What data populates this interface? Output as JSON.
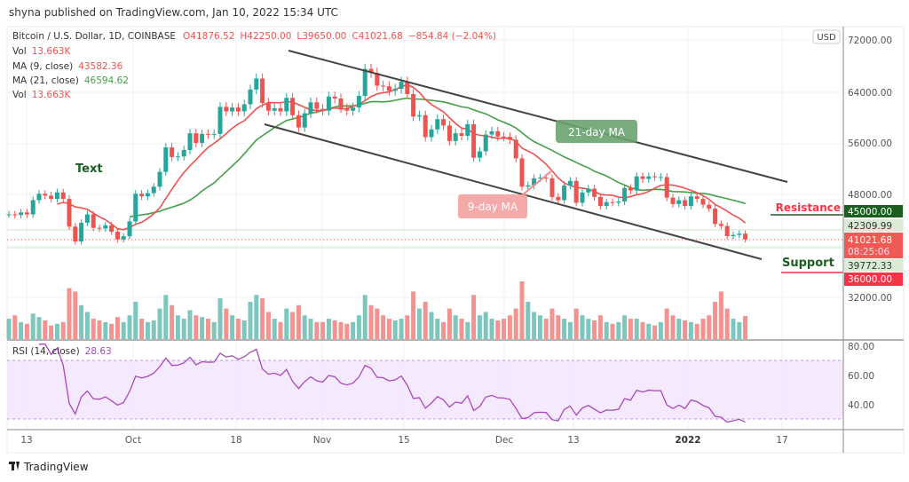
{
  "header": {
    "published": "shyna published on TradingView.com, Jan 10, 2022 15:34 UTC"
  },
  "legend": {
    "symbol": "Bitcoin / U.S. Dollar, 1D, COINBASE",
    "open": "O41876.52",
    "high": "H42250.00",
    "low": "L39650.00",
    "close": "C41021.68",
    "change": "−854.84 (−2.04%)",
    "vol_label": "Vol",
    "vol_value": "13.663K",
    "ma9_label": "MA (9, close)",
    "ma9_value": "43582.36",
    "ma21_label": "MA (21, close)",
    "ma21_value": "46594.62",
    "vol2_label": "Vol",
    "vol2_value": "13.663K",
    "rsi_label": "RSI (14, close)",
    "rsi_value": "28.63"
  },
  "currency": "USD",
  "price_axis": [
    "72000.00",
    "64000.00",
    "56000.00",
    "48000.00",
    "32000.00"
  ],
  "price_labels": {
    "resistance": "45000.00",
    "high": "42309.99",
    "last": "41021.68",
    "countdown": "08:25:06",
    "low": "39772.33",
    "support": "36000.00"
  },
  "rsi_axis": [
    "80.00",
    "60.00",
    "40.00"
  ],
  "time_axis": [
    "13",
    "Oct",
    "18",
    "Nov",
    "15",
    "Dec",
    "13",
    "2022",
    "17"
  ],
  "annotations": {
    "text": "Text",
    "ma21": "21-day MA",
    "ma9": "9-day MA",
    "resistance": "Resistance",
    "support": "Support"
  },
  "footer": {
    "brand": "TradingView"
  },
  "colors": {
    "up": "#26a69a",
    "down": "#ef5350",
    "ma9": "#f0504f",
    "ma21": "#43a047",
    "rsi": "#ab47bc",
    "resistance_box": "#1b5e20",
    "support_box": "#f23645"
  },
  "chart_data": {
    "type": "candlestick",
    "start_date": "2021-09-10",
    "end_date": "2022-01-10",
    "interval": "1D",
    "ylim": [
      28000,
      76000
    ],
    "close": [
      44900,
      44800,
      45200,
      44900,
      47100,
      48100,
      47800,
      47300,
      48300,
      47300,
      43000,
      40700,
      43600,
      44900,
      42800,
      42700,
      43200,
      42200,
      41000,
      41500,
      43800,
      48100,
      47700,
      48200,
      49200,
      51500,
      55300,
      53800,
      53900,
      54900,
      57500,
      56000,
      57400,
      57300,
      57400,
      61600,
      60900,
      61500,
      60900,
      62000,
      64300,
      66000,
      62200,
      61000,
      61400,
      60900,
      63000,
      60300,
      58400,
      60600,
      62300,
      61300,
      61000,
      63200,
      62900,
      61400,
      61000,
      61500,
      63300,
      67500,
      66900,
      64900,
      64800,
      64100,
      64400,
      65500,
      63600,
      60100,
      60300,
      56900,
      58100,
      59700,
      58700,
      56300,
      57500,
      57100,
      58900,
      53700,
      54700,
      57300,
      57800,
      57000,
      56950,
      56500,
      53600,
      49200,
      49400,
      50500,
      50600,
      50500,
      47600,
      47100,
      49400,
      50100,
      46700,
      48300,
      48900,
      47600,
      46200,
      46800,
      46700,
      46900,
      49000,
      48600,
      50800,
      50400,
      50800,
      50700,
      50700,
      47500,
      46500,
      47100,
      46200,
      47700,
      47300,
      46400,
      45800,
      43400,
      43100,
      41500,
      41700,
      41900,
      41021.68
    ],
    "volume_k": [
      12,
      14,
      10,
      9,
      15,
      13,
      11,
      8,
      9,
      10,
      30,
      28,
      20,
      16,
      12,
      11,
      10,
      9,
      13,
      10,
      14,
      22,
      12,
      10,
      11,
      18,
      26,
      20,
      14,
      12,
      17,
      14,
      13,
      12,
      10,
      24,
      18,
      14,
      12,
      11,
      22,
      26,
      24,
      16,
      12,
      10,
      18,
      16,
      20,
      14,
      12,
      10,
      10,
      12,
      11,
      10,
      9,
      10,
      14,
      26,
      20,
      18,
      14,
      12,
      11,
      12,
      14,
      28,
      18,
      22,
      16,
      12,
      10,
      18,
      14,
      12,
      10,
      26,
      14,
      16,
      12,
      11,
      12,
      14,
      18,
      34,
      22,
      16,
      14,
      12,
      18,
      14,
      12,
      10,
      18,
      14,
      12,
      11,
      14,
      10,
      9,
      10,
      14,
      12,
      12,
      10,
      9,
      8,
      10,
      18,
      14,
      12,
      11,
      10,
      9,
      12,
      14,
      22,
      28,
      18,
      12,
      10,
      13.663
    ],
    "overlays": [
      "MA 9",
      "MA 21"
    ],
    "rsi_levels": [
      30,
      70
    ],
    "resistance": 45000,
    "support": 36000
  }
}
